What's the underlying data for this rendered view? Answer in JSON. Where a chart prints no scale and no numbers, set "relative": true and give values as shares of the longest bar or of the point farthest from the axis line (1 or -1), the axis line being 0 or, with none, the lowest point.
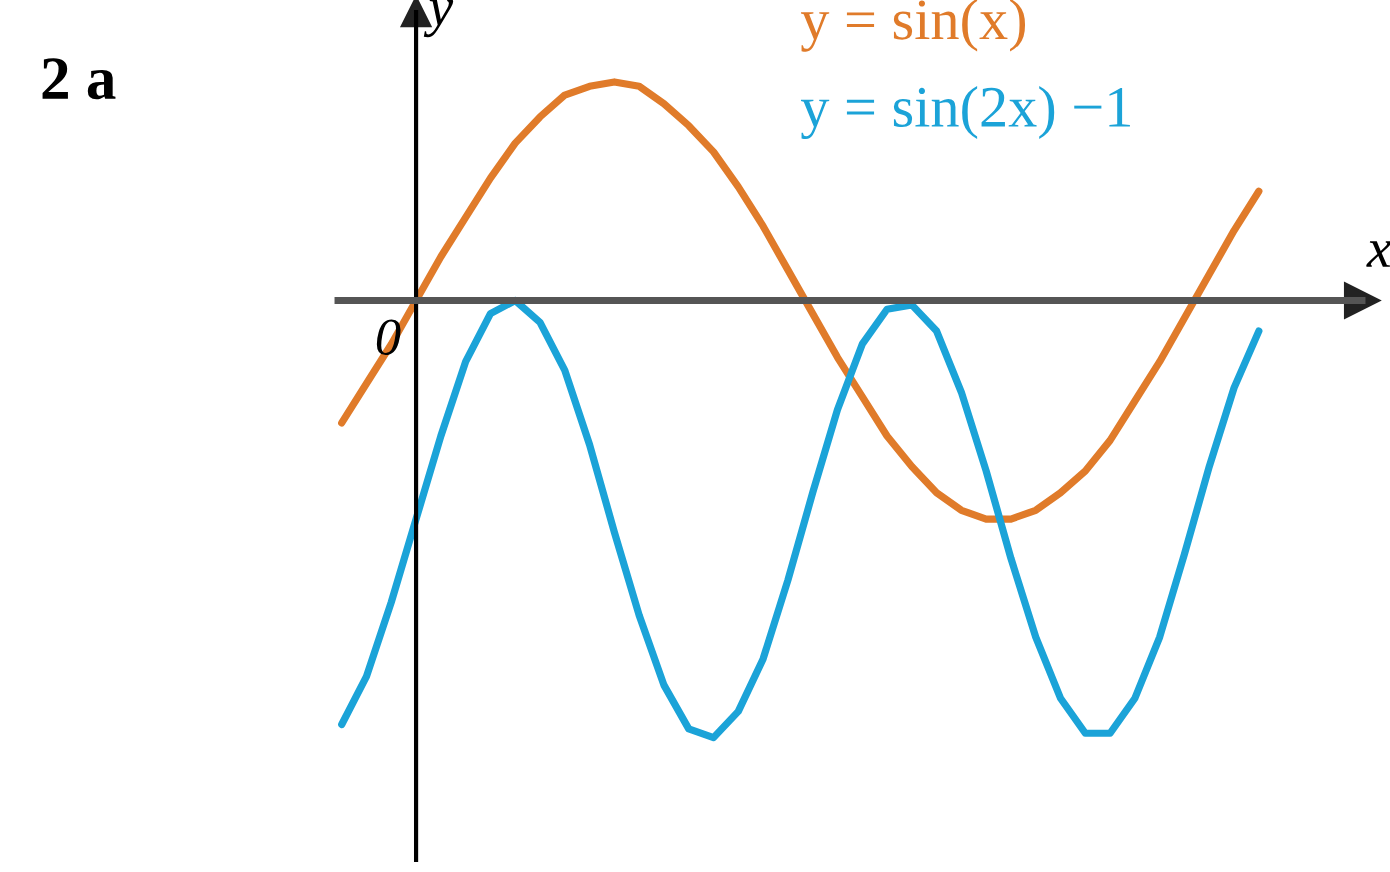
{
  "chart_data": {
    "type": "line",
    "relative": true,
    "categories": [
      null,
      null,
      null,
      null,
      null,
      null,
      null,
      null,
      null,
      null,
      null,
      null,
      null,
      null,
      null,
      null,
      null,
      null,
      null,
      null,
      null,
      null,
      null,
      null,
      null,
      null,
      null,
      null,
      null,
      null,
      null,
      null,
      null,
      null,
      null,
      null,
      null,
      null
    ],
    "series": [
      {
        "name": "y = sin(x)",
        "color": "#e07b2a",
        "values": [
          -0.28,
          -0.19,
          -0.1,
          0,
          0.1,
          0.19,
          0.28,
          0.36,
          0.42,
          0.47,
          0.49,
          0.5,
          0.49,
          0.45,
          0.4,
          0.34,
          0.26,
          0.17,
          0.07,
          -0.03,
          -0.13,
          -0.22,
          -0.31,
          -0.38,
          -0.44,
          -0.48,
          -0.5,
          -0.5,
          -0.48,
          -0.44,
          -0.39,
          -0.32,
          -0.23,
          -0.14,
          -0.04,
          0.06,
          0.16,
          0.25
        ]
      },
      {
        "name": "y = sin(2x) −1",
        "color": "#1ba3d8",
        "values": [
          -0.97,
          -0.86,
          -0.69,
          -0.5,
          -0.31,
          -0.14,
          -0.03,
          0.0,
          -0.05,
          -0.16,
          -0.33,
          -0.53,
          -0.72,
          -0.88,
          -0.98,
          -1.0,
          -0.94,
          -0.82,
          -0.64,
          -0.44,
          -0.25,
          -0.1,
          -0.02,
          -0.01,
          -0.07,
          -0.21,
          -0.39,
          -0.59,
          -0.77,
          -0.91,
          -0.99,
          -0.99,
          -0.91,
          -0.77,
          -0.58,
          -0.38,
          -0.2,
          -0.07
        ]
      }
    ],
    "xlabel": "x",
    "ylabel": "y",
    "annotations": [
      "2 a",
      "0"
    ],
    "line_style": "solid",
    "marker": "none"
  }
}
